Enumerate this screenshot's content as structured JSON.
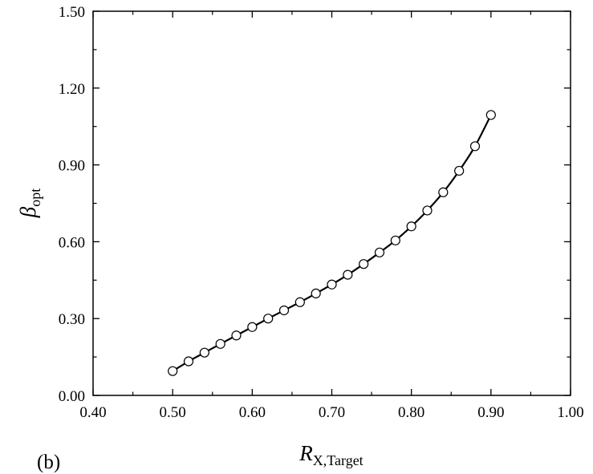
{
  "chart_data": {
    "type": "line",
    "panel_label": "(b)",
    "xlabel": {
      "symbol": "R",
      "subscript": "X,Target"
    },
    "ylabel": {
      "symbol": "β",
      "subscript": "opt"
    },
    "xlim": [
      0.4,
      1.0
    ],
    "ylim": [
      0.0,
      1.5
    ],
    "x_ticks": [
      "0.40",
      "0.50",
      "0.60",
      "0.70",
      "0.80",
      "0.90",
      "1.00"
    ],
    "y_ticks": [
      "0.00",
      "0.30",
      "0.60",
      "0.90",
      "1.20",
      "1.50"
    ],
    "grid": false,
    "series": [
      {
        "marker": "open-circle",
        "line": "solid-black",
        "x": [
          0.5,
          0.52,
          0.54,
          0.56,
          0.58,
          0.6,
          0.62,
          0.64,
          0.66,
          0.68,
          0.7,
          0.72,
          0.74,
          0.76,
          0.78,
          0.8,
          0.82,
          0.84,
          0.86,
          0.88,
          0.9
        ],
        "y": [
          0.095,
          0.133,
          0.167,
          0.201,
          0.234,
          0.267,
          0.3,
          0.332,
          0.364,
          0.398,
          0.433,
          0.471,
          0.513,
          0.558,
          0.605,
          0.66,
          0.722,
          0.793,
          0.877,
          0.973,
          1.095
        ]
      }
    ]
  }
}
